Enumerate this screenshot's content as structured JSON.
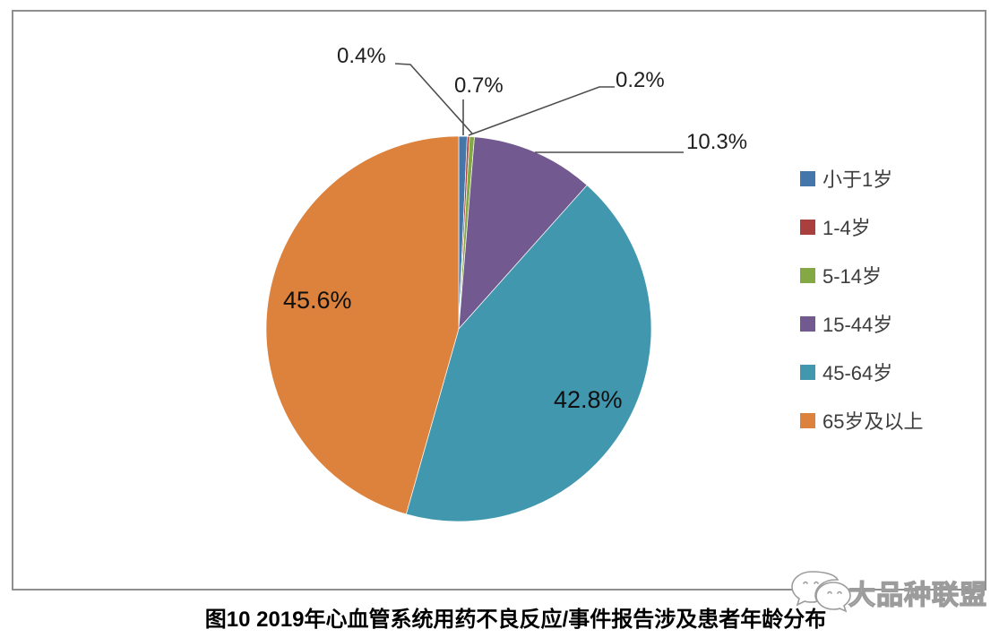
{
  "chart_data": {
    "type": "pie",
    "title": "图10 2019年心血管系统用药不良反应/事件报告涉及患者年龄分布",
    "legend_position": "right",
    "start_angle_deg": 0,
    "direction": "clockwise",
    "slices": [
      {
        "label": "小于1岁",
        "value": 0.7,
        "display": "0.7%",
        "color": "#4476A9"
      },
      {
        "label": "1-4岁",
        "value": 0.2,
        "display": "0.2%",
        "color": "#AA403E"
      },
      {
        "label": "5-14岁",
        "value": 0.4,
        "display": "0.4%",
        "color": "#84A844"
      },
      {
        "label": "15-44岁",
        "value": 10.3,
        "display": "10.3%",
        "color": "#72598F"
      },
      {
        "label": "45-64岁",
        "value": 42.8,
        "display": "42.8%",
        "color": "#4197AE"
      },
      {
        "label": "65岁及以上",
        "value": 45.6,
        "display": "45.6%",
        "color": "#DC823C"
      }
    ]
  },
  "caption": "图10 2019年心血管系统用药不良反应/事件报告涉及患者年龄分布",
  "watermark": {
    "text": "大品种联盟",
    "logo": "chat-bubbles"
  },
  "frame": {
    "border_color": "#8f8f8f",
    "leader_color": "#4d4d4d"
  }
}
